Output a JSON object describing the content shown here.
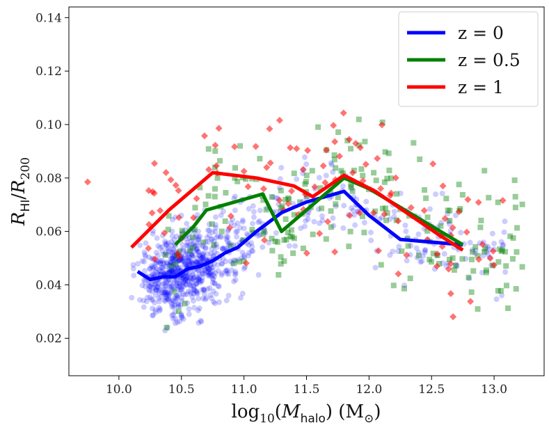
{
  "chart_data": {
    "type": "scatter",
    "xlabel": "log10(Mhalo) (M⊙)",
    "ylabel": "RHI/R200",
    "xlim": [
      9.6,
      13.4
    ],
    "ylim": [
      0.006,
      0.144
    ],
    "xticks": [
      "10.0",
      "10.5",
      "11.0",
      "11.5",
      "12.0",
      "12.5",
      "13.0"
    ],
    "yticks": [
      "0.02",
      "0.04",
      "0.06",
      "0.08",
      "0.10",
      "0.12",
      "0.14"
    ],
    "legend_position": "top-right",
    "series": [
      {
        "name": "z = 0",
        "color": "#0000ff",
        "marker": "circle",
        "line": [
          [
            10.15,
            0.045
          ],
          [
            10.25,
            0.042
          ],
          [
            10.35,
            0.043
          ],
          [
            10.45,
            0.043
          ],
          [
            10.55,
            0.046
          ],
          [
            10.65,
            0.047
          ],
          [
            10.75,
            0.049
          ],
          [
            10.85,
            0.052
          ],
          [
            10.95,
            0.054
          ],
          [
            11.1,
            0.06
          ],
          [
            11.3,
            0.067
          ],
          [
            11.5,
            0.071
          ],
          [
            11.8,
            0.075
          ],
          [
            12.0,
            0.066
          ],
          [
            12.25,
            0.057
          ],
          [
            12.75,
            0.055
          ]
        ]
      },
      {
        "name": "z = 0.5",
        "color": "#008000",
        "marker": "square",
        "line": [
          [
            10.45,
            0.055
          ],
          [
            10.6,
            0.062
          ],
          [
            10.7,
            0.068
          ],
          [
            10.85,
            0.07
          ],
          [
            11.0,
            0.072
          ],
          [
            11.15,
            0.074
          ],
          [
            11.3,
            0.06
          ],
          [
            11.45,
            0.066
          ],
          [
            11.6,
            0.072
          ],
          [
            11.8,
            0.08
          ],
          [
            12.0,
            0.076
          ],
          [
            12.25,
            0.069
          ],
          [
            12.5,
            0.062
          ],
          [
            12.75,
            0.055
          ]
        ]
      },
      {
        "name": "z = 1",
        "color": "#ff0000",
        "marker": "diamond",
        "line": [
          [
            10.1,
            0.054
          ],
          [
            10.4,
            0.068
          ],
          [
            10.75,
            0.082
          ],
          [
            11.1,
            0.08
          ],
          [
            11.4,
            0.077
          ],
          [
            11.55,
            0.073
          ],
          [
            11.8,
            0.081
          ],
          [
            12.05,
            0.075
          ],
          [
            12.3,
            0.067
          ],
          [
            12.55,
            0.059
          ],
          [
            12.75,
            0.053
          ]
        ]
      }
    ]
  }
}
